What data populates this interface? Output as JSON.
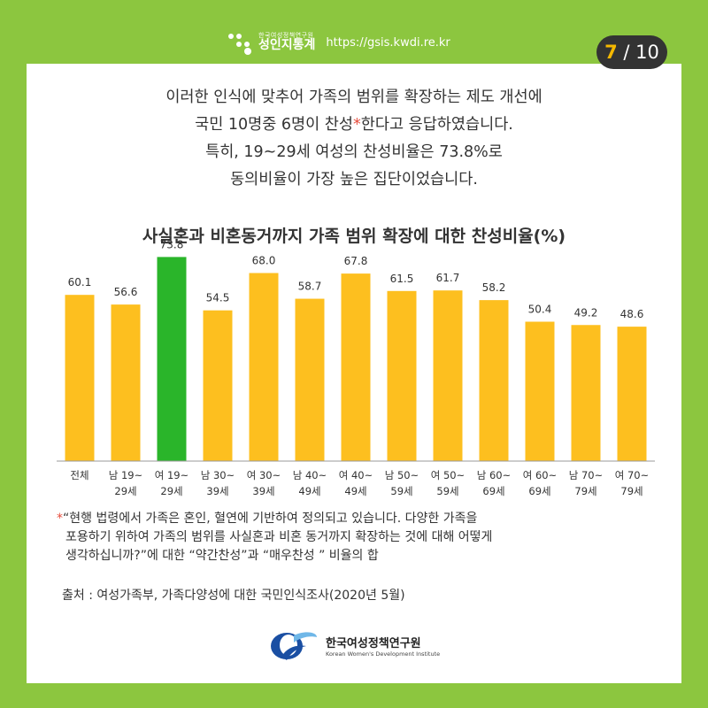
{
  "header": {
    "brand_small": "한국여성정책연구원",
    "brand_big": "성인지통계",
    "url": "https://gsis.kwdi.re.kr"
  },
  "page": {
    "current": "7",
    "separator": "/",
    "total": "10"
  },
  "intro": {
    "line1": "이러한 인식에 맞추어 가족의 범위를 확장하는 제도 개선에",
    "line2_pre": "국민 10명중 6명이 찬성",
    "line2_star": "*",
    "line2_post": "한다고 응답하였습니다.",
    "line3": "특히, 19~29세 여성의 찬성비율은 73.8%로",
    "line4": "동의비율이 가장 높은 집단이었습니다."
  },
  "chart_data": {
    "type": "bar",
    "title": "사실혼과 비혼동거까지 가족 범위 확장에 대한 찬성비율(%)",
    "categories": [
      [
        "전체"
      ],
      [
        "남 19~",
        "29세"
      ],
      [
        "여 19~",
        "29세"
      ],
      [
        "남 30~",
        "39세"
      ],
      [
        "여 30~",
        "39세"
      ],
      [
        "남 40~",
        "49세"
      ],
      [
        "여 40~",
        "49세"
      ],
      [
        "남 50~",
        "59세"
      ],
      [
        "여 50~",
        "59세"
      ],
      [
        "남 60~",
        "69세"
      ],
      [
        "여 60~",
        "69세"
      ],
      [
        "남 70~",
        "79세"
      ],
      [
        "여 70~",
        "79세"
      ]
    ],
    "values": [
      60.1,
      56.6,
      73.8,
      54.5,
      68.0,
      58.7,
      67.8,
      61.5,
      61.7,
      58.2,
      50.4,
      49.2,
      48.6
    ],
    "value_labels": [
      "60.1",
      "56.6",
      "73.8",
      "54.5",
      "68.0",
      "58.7",
      "67.8",
      "61.5",
      "61.7",
      "58.2",
      "50.4",
      "49.2",
      "48.6"
    ],
    "highlight_index": 2,
    "colors": {
      "bar": "#fdbf1f",
      "highlight": "#2ab52a"
    },
    "ylim": [
      0,
      80
    ],
    "grid": false
  },
  "note": {
    "star": "*",
    "line1": "“현행 법령에서 가족은 혼인, 혈연에 기반하여 정의되고 있습니다. 다양한 가족을",
    "line2": "포용하기 위하여 가족의 범위를 사실혼과 비혼 동거까지 확장하는 것에 대해 어떻게",
    "line3": "생각하십니까?”에 대한 “약간찬성”과 “매우찬성 ” 비율의 합"
  },
  "source": "출처 : 여성가족부, 가족다양성에 대한 국민인식조사(2020년 5월)",
  "footer": {
    "org_ko": "한국여성정책연구원",
    "org_en": "Korean Women's Development Institute"
  }
}
